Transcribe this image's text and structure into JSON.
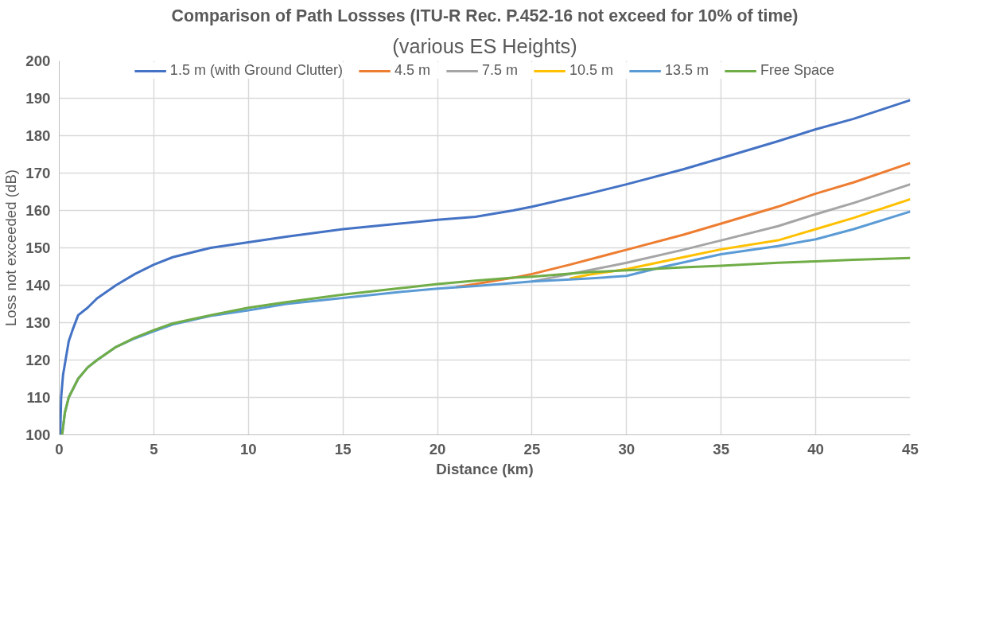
{
  "chart_data": {
    "type": "line",
    "title": "Comparison of Path Lossses (ITU-R Rec. P.452-16 not exceed for 10% of time)",
    "subtitle": "(various ES Heights)",
    "xlabel": "Distance (km)",
    "ylabel": "Loss not exceeded (dB)",
    "xlim": [
      0,
      45
    ],
    "ylim": [
      100,
      200
    ],
    "xticks": [
      0,
      5,
      10,
      15,
      20,
      25,
      30,
      35,
      40,
      45
    ],
    "yticks": [
      100,
      110,
      120,
      130,
      140,
      150,
      160,
      170,
      180,
      190,
      200
    ],
    "grid": true,
    "legend": "top",
    "marker": "none",
    "line_style": "solid",
    "series": [
      {
        "name": "1.5 m (with Ground Clutter)",
        "color": "#4472c4",
        "x": [
          0.05,
          0.1,
          0.2,
          0.3,
          0.5,
          0.7,
          1,
          1.5,
          2,
          3,
          4,
          5,
          6,
          8,
          10,
          12,
          15,
          18,
          20,
          22,
          24,
          25,
          28,
          30,
          33,
          35,
          38,
          40,
          42,
          45
        ],
        "values": [
          100,
          110,
          116,
          119,
          125,
          128,
          132,
          134,
          136.5,
          140,
          143,
          145.5,
          147.5,
          150,
          151.5,
          153,
          155,
          156.5,
          157.5,
          158.3,
          160,
          161,
          164.5,
          167,
          171,
          174,
          178.5,
          181.7,
          184.5,
          189.5
        ]
      },
      {
        "name": "4.5 m",
        "color": "#ed7d31",
        "x": [
          21,
          22,
          24,
          25,
          27,
          30,
          33,
          35,
          38,
          40,
          42,
          45
        ],
        "values": [
          139.5,
          140.3,
          142,
          143,
          145.5,
          149.5,
          153.5,
          156.5,
          161,
          164.5,
          167.5,
          172.7
        ]
      },
      {
        "name": "7.5 m",
        "color": "#a5a5a5",
        "x": [
          25,
          26,
          28,
          30,
          33,
          35,
          38,
          40,
          42,
          45
        ],
        "values": [
          141,
          142,
          144,
          146,
          149.5,
          152,
          155.8,
          159,
          162,
          167
        ]
      },
      {
        "name": "10.5 m",
        "color": "#ffc000",
        "x": [
          27,
          28,
          30,
          33,
          35,
          38,
          40,
          42,
          45
        ],
        "values": [
          141.8,
          142.8,
          144.3,
          147.5,
          149.6,
          152,
          155,
          158,
          163
        ]
      },
      {
        "name": "13.5 m",
        "color": "#5b9bd5",
        "x": [
          0.15,
          0.3,
          0.5,
          1,
          1.5,
          2,
          3,
          4,
          5,
          6,
          8,
          10,
          12,
          15,
          18,
          20,
          22,
          24,
          25,
          28,
          30,
          32,
          35,
          38,
          40,
          42,
          45
        ],
        "values": [
          100,
          106,
          110,
          115,
          118,
          120,
          123.5,
          125.8,
          127.7,
          129.5,
          131.8,
          133.3,
          135,
          136.6,
          138.2,
          139.1,
          139.8,
          140.6,
          141,
          141.8,
          142.5,
          145,
          148.3,
          150.5,
          152.3,
          155,
          159.7
        ]
      },
      {
        "name": "Free Space",
        "color": "#70ad47",
        "x": [
          0.15,
          0.3,
          0.5,
          1,
          1.5,
          2,
          3,
          4,
          5,
          6,
          8,
          10,
          12,
          15,
          18,
          20,
          22,
          24,
          25,
          28,
          30,
          33,
          35,
          38,
          40,
          42,
          45
        ],
        "values": [
          100,
          106,
          110,
          115,
          118,
          120,
          123.5,
          126,
          128,
          129.8,
          132,
          134,
          135.5,
          137.5,
          139.2,
          140.3,
          141.2,
          142,
          142.3,
          143.5,
          144,
          144.8,
          145.2,
          146,
          146.4,
          146.8,
          147.3
        ]
      }
    ]
  }
}
